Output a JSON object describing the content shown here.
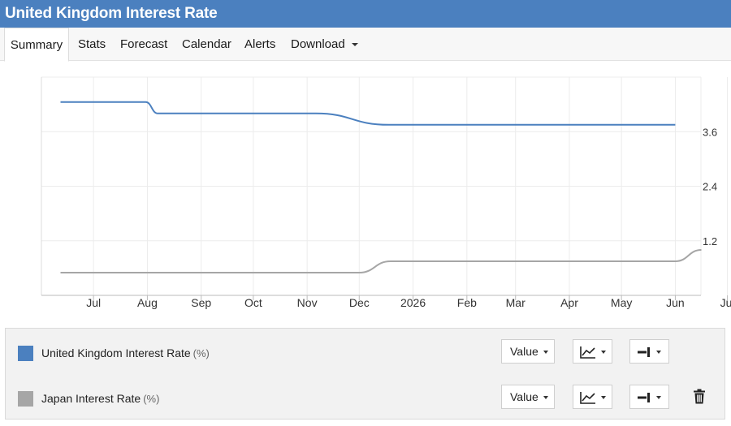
{
  "header": {
    "title": "United Kingdom Interest Rate"
  },
  "tabs": [
    {
      "label": "Summary",
      "active": true
    },
    {
      "label": "Stats"
    },
    {
      "label": "Forecast"
    },
    {
      "label": "Calendar"
    },
    {
      "label": "Alerts"
    },
    {
      "label": "Download",
      "has_dropdown": true
    }
  ],
  "chart_data": {
    "type": "line",
    "x_tick_labels": [
      "Jul",
      "Aug",
      "Sep",
      "Oct",
      "Nov",
      "Dec",
      "2026",
      "Feb",
      "Mar",
      "Apr",
      "May",
      "Jun",
      "Jul"
    ],
    "y_tick_labels": [
      "3.6",
      "2.4",
      "1.2"
    ],
    "y_axis_position": "right",
    "ylim": [
      0,
      4.8
    ],
    "grid": true,
    "legend": "bottom",
    "series": [
      {
        "name": "United Kingdom Interest Rate",
        "unit": "(%)",
        "color": "#4b80bf",
        "points": [
          [
            "2025-06-12",
            4.25
          ],
          [
            "2025-07-31",
            4.25
          ],
          [
            "2025-08-07",
            4.0
          ],
          [
            "2025-11-06",
            4.0
          ],
          [
            "2025-12-18",
            3.75
          ],
          [
            "2026-06-01",
            3.75
          ]
        ]
      },
      {
        "name": "Japan Interest Rate",
        "unit": "(%)",
        "color": "#a6a6a6",
        "points": [
          [
            "2025-06-12",
            0.5
          ],
          [
            "2025-12-01",
            0.5
          ],
          [
            "2025-12-19",
            0.75
          ],
          [
            "2026-06-01",
            0.75
          ],
          [
            "2026-06-16",
            1.0
          ]
        ]
      }
    ]
  },
  "legend_rows": [
    {
      "series_label": "United Kingdom Interest Rate",
      "unit": "(%)",
      "color": "#4b80bf",
      "value_label": "Value",
      "chart_type_icon": "line-chart-icon",
      "axis_icon": "axis-right-icon",
      "deletable": false
    },
    {
      "series_label": "Japan Interest Rate",
      "unit": "(%)",
      "color": "#a6a6a6",
      "value_label": "Value",
      "chart_type_icon": "line-chart-icon",
      "axis_icon": "axis-right-icon",
      "deletable": true,
      "delete_icon": "trash-icon"
    }
  ]
}
